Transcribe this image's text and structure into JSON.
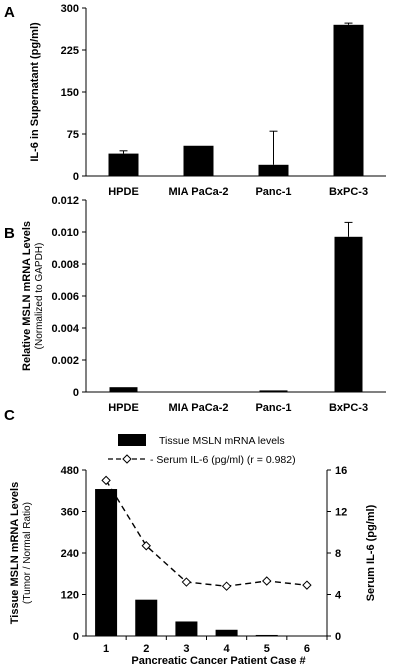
{
  "chart_data": [
    {
      "panel_label": "A",
      "type": "bar",
      "ylabel": "IL-6 in Supernatant (pg/ml)",
      "xlabel": "",
      "categories": [
        "HPDE",
        "MIA PaCa-2",
        "Panc-1",
        "BxPC-3"
      ],
      "values": [
        40,
        54,
        20,
        270
      ],
      "error_plus": [
        5,
        0,
        60,
        3
      ],
      "ylim": [
        0,
        300
      ],
      "yticks": [
        "0",
        "75",
        "150",
        "225",
        "300"
      ],
      "bar_color": "#000000",
      "grid": false
    },
    {
      "panel_label": "B",
      "type": "bar",
      "ylabel": "Relative MSLN mRNA Levels",
      "ylabel_sub": "(Normalized to GAPDH)",
      "xlabel": "",
      "categories": [
        "HPDE",
        "MIA PaCa-2",
        "Panc-1",
        "BxPC-3"
      ],
      "values": [
        0.0003,
        3e-05,
        0.0001,
        0.0097
      ],
      "error_plus": [
        0,
        0,
        0,
        0.0009
      ],
      "ylim": [
        0,
        0.012
      ],
      "yticks": [
        "0",
        "0.002",
        "0.004",
        "0.006",
        "0.008",
        "0.010",
        "0.012"
      ],
      "bar_color": "#000000",
      "grid": false
    },
    {
      "panel_label": "C",
      "type": "bar+line",
      "xlabel": "Pancreatic Cancer Patient Case #",
      "categories": [
        "1",
        "2",
        "3",
        "4",
        "5",
        "6"
      ],
      "ylabel_left": "Tissue MSLN mRNA Levels",
      "ylabel_left_sub": "(Tumor / Normal Ratio)",
      "ylabel_right": "Serum IL-6 (pg/ml)",
      "ylim_left": [
        0,
        480
      ],
      "yticks_left": [
        "0",
        "120",
        "240",
        "360",
        "480"
      ],
      "ylim_right": [
        0,
        16
      ],
      "yticks_right": [
        "0",
        "4",
        "8",
        "12",
        "16"
      ],
      "legend_position": "top",
      "series": [
        {
          "name": "Tissue MSLN mRNA levels",
          "kind": "bar",
          "axis": "left",
          "values": [
            425,
            105,
            42,
            18,
            3,
            0
          ],
          "color": "#000000"
        },
        {
          "name": "Serum IL-6 (pg/ml) (r = 0.982)",
          "kind": "line",
          "axis": "right",
          "values": [
            15,
            8.7,
            5.2,
            4.8,
            5.3,
            4.9
          ],
          "color": "#000000",
          "dash": "dashed",
          "marker": "open-diamond"
        }
      ]
    }
  ]
}
